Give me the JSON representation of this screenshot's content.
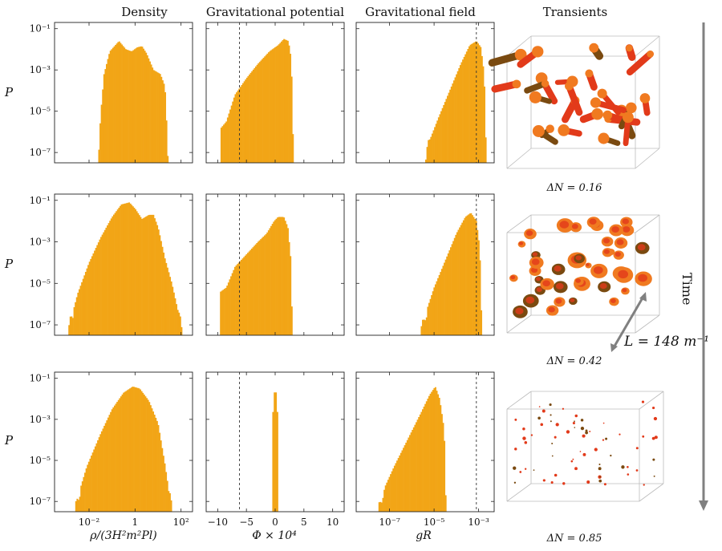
{
  "column_titles": {
    "density": "Density",
    "potential": "Gravitational potential",
    "field": "Gravitational field",
    "transients": "Transients"
  },
  "axis_labels": {
    "y": "P",
    "x_density": "ρ/(3H²m²Pl)",
    "x_potential": "Φ × 10⁴",
    "x_field": "gR"
  },
  "delta_N": [
    "ΔN = 0.16",
    "ΔN = 0.42",
    "ΔN = 0.85"
  ],
  "time_label": "Time",
  "box_label": "L = 148 m⁻¹",
  "colors": {
    "hist": "#F2A516",
    "hist_edge": "#E0950C",
    "blob_dark": "#7A4A10",
    "blob_red": "#E23A1A",
    "blob_orange": "#F07A20",
    "arrow": "#808080"
  },
  "chart_data": [
    {
      "type": "bar",
      "panel": "density",
      "ylabel": "P",
      "xlabel": "ρ/(3H²m²Pl)",
      "x_scale": "log",
      "y_scale": "log",
      "xlim_log10": [
        -3.5,
        2.5
      ],
      "ylim_log10": [
        -7.5,
        -0.7
      ],
      "x_ticks": [
        {
          "v": -2,
          "t": "10⁻²"
        },
        {
          "v": 0,
          "t": "1"
        },
        {
          "v": 2,
          "t": "10²"
        }
      ],
      "y_ticks": [
        {
          "v": -1,
          "t": "10⁻¹"
        },
        {
          "v": -3,
          "t": "10⁻³"
        },
        {
          "v": -5,
          "t": "10⁻⁵"
        },
        {
          "v": -7,
          "t": "10⁻⁷"
        }
      ],
      "rows": [
        {
          "delta_N": "0.16",
          "profile": [
            [
              -1.6,
              -7.5
            ],
            [
              -1.5,
              -5.2
            ],
            [
              -1.35,
              -3.2
            ],
            [
              -1.1,
              -2.1
            ],
            [
              -0.7,
              -1.6
            ],
            [
              -0.4,
              -2.0
            ],
            [
              -0.15,
              -2.1
            ],
            [
              0.1,
              -1.9
            ],
            [
              0.3,
              -1.85
            ],
            [
              0.5,
              -2.2
            ],
            [
              0.8,
              -3.0
            ],
            [
              1.1,
              -3.2
            ],
            [
              1.3,
              -3.8
            ],
            [
              1.45,
              -7.5
            ]
          ]
        },
        {
          "delta_N": "0.42",
          "profile": [
            [
              -2.9,
              -7.5
            ],
            [
              -2.8,
              -6.8
            ],
            [
              -2.5,
              -5.5
            ],
            [
              -2.0,
              -4.0
            ],
            [
              -1.5,
              -2.8
            ],
            [
              -1.0,
              -1.8
            ],
            [
              -0.6,
              -1.2
            ],
            [
              -0.25,
              -1.1
            ],
            [
              0.0,
              -1.4
            ],
            [
              0.3,
              -1.9
            ],
            [
              0.6,
              -1.7
            ],
            [
              0.8,
              -1.7
            ],
            [
              1.0,
              -2.3
            ],
            [
              1.3,
              -3.8
            ],
            [
              1.6,
              -5.0
            ],
            [
              1.9,
              -6.5
            ],
            [
              2.05,
              -7.5
            ]
          ]
        },
        {
          "delta_N": "0.85",
          "profile": [
            [
              -2.6,
              -7.5
            ],
            [
              -2.5,
              -6.8
            ],
            [
              -2.1,
              -5.3
            ],
            [
              -1.5,
              -3.7
            ],
            [
              -1.0,
              -2.5
            ],
            [
              -0.5,
              -1.7
            ],
            [
              -0.1,
              -1.4
            ],
            [
              0.2,
              -1.5
            ],
            [
              0.6,
              -2.1
            ],
            [
              1.0,
              -3.2
            ],
            [
              1.3,
              -5.2
            ],
            [
              1.6,
              -7.5
            ]
          ]
        }
      ]
    },
    {
      "type": "bar",
      "panel": "gravitational-potential",
      "xlabel": "Φ × 10⁴",
      "x_scale": "linear",
      "y_scale": "log",
      "xlim": [
        -12,
        12
      ],
      "ylim_log10": [
        -7.5,
        -0.7
      ],
      "x_ticks": [
        {
          "v": -10,
          "t": "−10"
        },
        {
          "v": -5,
          "t": "−5"
        },
        {
          "v": 0,
          "t": "0"
        },
        {
          "v": 5,
          "t": "5"
        },
        {
          "v": 10,
          "t": "10"
        }
      ],
      "dashed_line_x": -6.2,
      "rows": [
        {
          "delta_N": "0.16",
          "profile": [
            [
              -9.5,
              -7.5
            ],
            [
              -9.4,
              -5.8
            ],
            [
              -8.5,
              -5.5
            ],
            [
              -7,
              -4.2
            ],
            [
              -5,
              -3.4
            ],
            [
              -3,
              -2.7
            ],
            [
              -1,
              -2.1
            ],
            [
              0.5,
              -1.8
            ],
            [
              1.5,
              -1.5
            ],
            [
              2.3,
              -1.6
            ],
            [
              2.8,
              -2.5
            ],
            [
              3.2,
              -7.5
            ]
          ]
        },
        {
          "delta_N": "0.42",
          "profile": [
            [
              -9.6,
              -7.5
            ],
            [
              -9.5,
              -5.4
            ],
            [
              -8.5,
              -5.2
            ],
            [
              -7,
              -4.2
            ],
            [
              -5,
              -3.6
            ],
            [
              -3,
              -3.0
            ],
            [
              -1.5,
              -2.6
            ],
            [
              -0.2,
              -2.0
            ],
            [
              0.5,
              -1.8
            ],
            [
              1.5,
              -1.8
            ],
            [
              2.2,
              -2.3
            ],
            [
              2.7,
              -3.8
            ],
            [
              3.0,
              -7.5
            ]
          ]
        },
        {
          "delta_N": "0.85",
          "profile": [
            [
              -0.5,
              -7.5
            ],
            [
              -0.45,
              -3.0
            ],
            [
              -0.2,
              -1.8
            ],
            [
              0,
              -1.5
            ],
            [
              0.2,
              -1.8
            ],
            [
              0.45,
              -3.0
            ],
            [
              0.5,
              -7.5
            ]
          ]
        }
      ]
    },
    {
      "type": "bar",
      "panel": "gravitational-field",
      "xlabel": "gR",
      "x_scale": "log",
      "y_scale": "log",
      "xlim_log10": [
        -8.5,
        -2.3
      ],
      "ylim_log10": [
        -7.5,
        -0.7
      ],
      "x_ticks": [
        {
          "v": -7,
          "t": "10⁻⁷"
        },
        {
          "v": -5,
          "t": "10⁻⁵"
        },
        {
          "v": -3,
          "t": "10⁻³"
        }
      ],
      "dashed_line_x_log10": -3.1,
      "rows": [
        {
          "delta_N": "0.16",
          "profile": [
            [
              -5.4,
              -7.5
            ],
            [
              -5.2,
              -6.4
            ],
            [
              -4.8,
              -5.3
            ],
            [
              -4.3,
              -4.0
            ],
            [
              -3.8,
              -2.7
            ],
            [
              -3.4,
              -1.8
            ],
            [
              -3.1,
              -1.6
            ],
            [
              -2.9,
              -1.9
            ],
            [
              -2.75,
              -3.2
            ],
            [
              -2.65,
              -7.5
            ]
          ]
        },
        {
          "delta_N": "0.42",
          "profile": [
            [
              -5.6,
              -7.5
            ],
            [
              -5.4,
              -6.5
            ],
            [
              -5.0,
              -5.2
            ],
            [
              -4.5,
              -3.9
            ],
            [
              -4.0,
              -2.6
            ],
            [
              -3.6,
              -1.8
            ],
            [
              -3.35,
              -1.6
            ],
            [
              -3.1,
              -2.0
            ],
            [
              -2.95,
              -3.3
            ],
            [
              -2.85,
              -7.5
            ]
          ]
        },
        {
          "delta_N": "0.85",
          "profile": [
            [
              -7.5,
              -7.5
            ],
            [
              -7.3,
              -6.5
            ],
            [
              -6.8,
              -5.3
            ],
            [
              -6.2,
              -4.0
            ],
            [
              -5.6,
              -2.7
            ],
            [
              -5.2,
              -1.8
            ],
            [
              -4.95,
              -1.4
            ],
            [
              -4.75,
              -2.0
            ],
            [
              -4.55,
              -3.5
            ],
            [
              -4.45,
              -7.5
            ]
          ]
        }
      ]
    }
  ]
}
